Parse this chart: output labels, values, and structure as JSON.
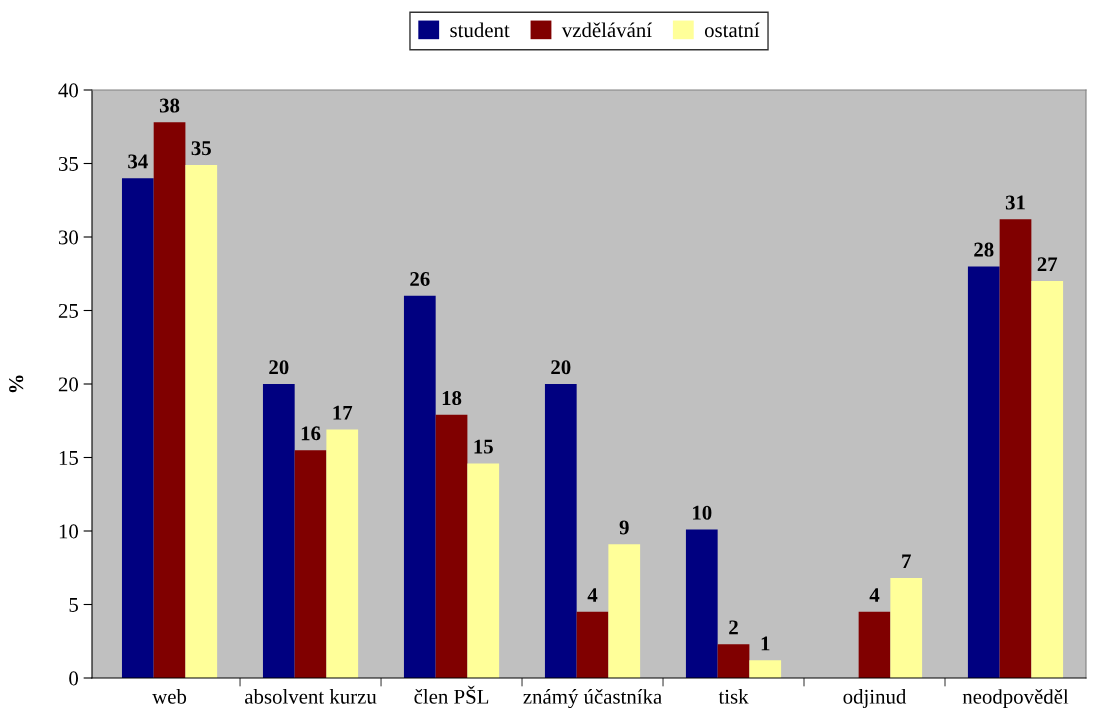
{
  "chart_data": {
    "type": "bar",
    "ylabel": "%",
    "categories": [
      "web",
      "absolvent kurzu",
      "člen PŠL",
      "známý účastníka",
      "tisk",
      "odjinud",
      "neodpověděl"
    ],
    "series": [
      {
        "name": "student",
        "color": "#000080",
        "values": [
          34.0,
          20.0,
          26.0,
          20.0,
          10.1,
          null,
          28.0
        ],
        "value_labels": [
          "34",
          "20",
          "26",
          "20",
          "10",
          null,
          "28"
        ]
      },
      {
        "name": "vzdělávání",
        "color": "#800000",
        "values": [
          37.8,
          15.5,
          17.9,
          4.5,
          2.3,
          4.5,
          31.2
        ],
        "value_labels": [
          "38",
          "16",
          "18",
          "4",
          "2",
          "4",
          "31"
        ]
      },
      {
        "name": "ostatní",
        "color": "#ffff99",
        "values": [
          34.9,
          16.9,
          14.6,
          9.1,
          1.2,
          6.8,
          27.0
        ],
        "value_labels": [
          "35",
          "17",
          "15",
          "9",
          "1",
          "7",
          "27"
        ]
      }
    ],
    "ylim": [
      0,
      40
    ],
    "yticks": [
      0,
      5,
      10,
      15,
      20,
      25,
      30,
      35,
      40
    ],
    "grid": false,
    "legend": "top"
  }
}
